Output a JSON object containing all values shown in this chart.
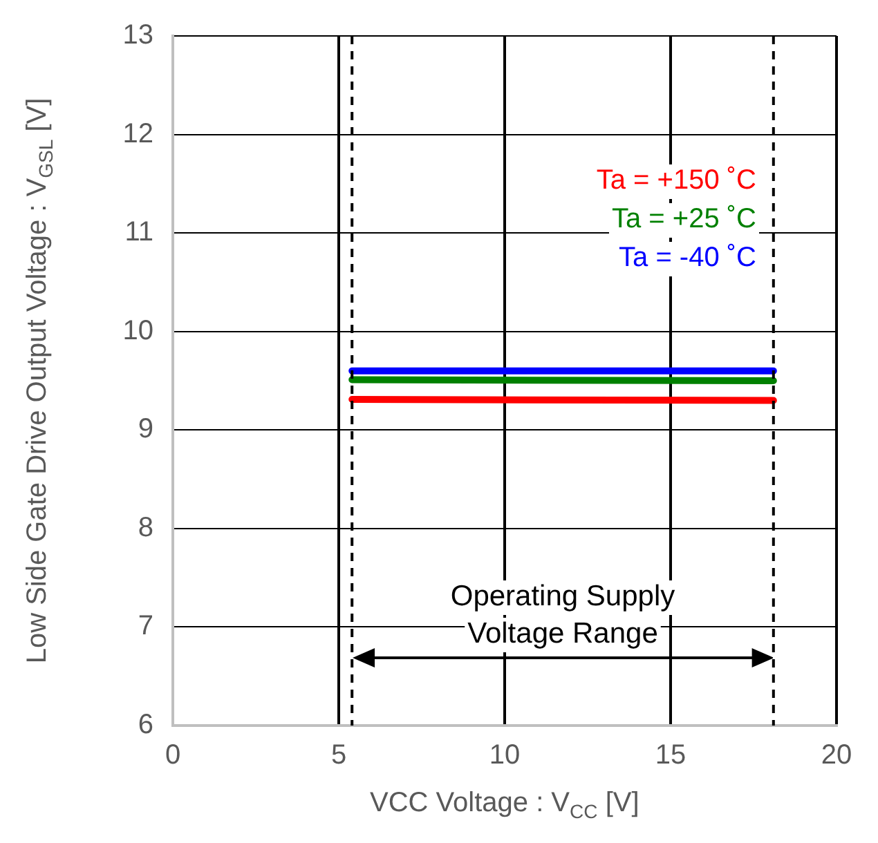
{
  "chart_data": {
    "type": "line",
    "xlabel": "VCC Voltage : V$_{CC}$ [V]",
    "ylabel": "Low Side Gate Drive Output Voltage : V$_{GSL}$ [V]",
    "x": [
      5.4,
      18.1
    ],
    "series": [
      {
        "name": "Ta = +150 ˚C",
        "color": "#ff0000",
        "values": [
          9.31,
          9.3
        ]
      },
      {
        "name": "Ta = +25 ˚C",
        "color": "#008000",
        "values": [
          9.51,
          9.5
        ]
      },
      {
        "name": "Ta = -40 ˚C",
        "color": "#0000ff",
        "values": [
          9.6,
          9.6
        ]
      }
    ],
    "xlim": [
      0,
      20
    ],
    "xticks": [
      0,
      5,
      10,
      15,
      20
    ],
    "ylim": [
      6,
      13
    ],
    "yticks": [
      6,
      7,
      8,
      9,
      10,
      11,
      12,
      13
    ],
    "grid": true,
    "legend": "top right",
    "marker": "none",
    "line_style": "solid",
    "ref_lines": [
      {
        "axis": "x",
        "value": 5.4,
        "color": "#000000",
        "line_style": "dashed"
      },
      {
        "axis": "x",
        "value": 18.1,
        "color": "#000000",
        "line_style": "dashed"
      }
    ],
    "annotations": [
      "Operating Supply\nVoltage Range"
    ]
  }
}
